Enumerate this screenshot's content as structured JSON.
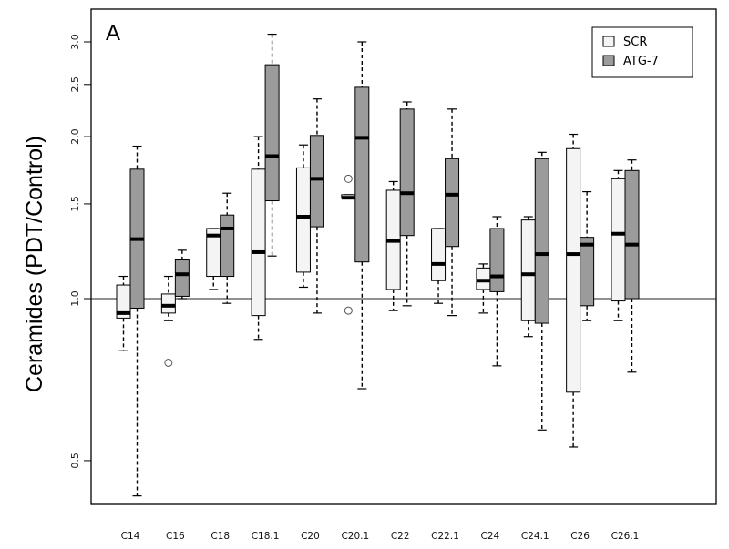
{
  "chart_data": {
    "type": "boxplot",
    "panel_label": "A",
    "ylabel": "Ceramides (PDT/Control)",
    "xlabel": "",
    "y_scale": "log",
    "ylim": [
      0.42,
      3.3
    ],
    "yticks": [
      0.5,
      1.0,
      1.5,
      2.0,
      2.5,
      3.0
    ],
    "ytick_labels": [
      "0.5",
      "1.0",
      "1.5",
      "2.0",
      "2.5",
      "3.0"
    ],
    "reference_line": 1.0,
    "legend_position": "top-right",
    "categories": [
      "C14",
      "C16",
      "C18",
      "C18.1",
      "C20",
      "C20.1",
      "C22",
      "C22.1",
      "C24",
      "C24.1",
      "C26",
      "C26.1"
    ],
    "series": [
      {
        "name": "SCR",
        "color": "#f4f4f4",
        "boxes": [
          {
            "whisker_low": 0.8,
            "q1": 0.92,
            "median": 0.94,
            "q3": 1.06,
            "whisker_high": 1.1,
            "outliers": []
          },
          {
            "whisker_low": 0.91,
            "q1": 0.94,
            "median": 0.97,
            "q3": 1.02,
            "whisker_high": 1.1,
            "outliers": [
              0.76
            ]
          },
          {
            "whisker_low": 1.04,
            "q1": 1.1,
            "median": 1.31,
            "q3": 1.35,
            "whisker_high": 1.35,
            "outliers": []
          },
          {
            "whisker_low": 0.84,
            "q1": 0.93,
            "median": 1.22,
            "q3": 1.74,
            "whisker_high": 2.0,
            "outliers": []
          },
          {
            "whisker_low": 1.05,
            "q1": 1.12,
            "median": 1.42,
            "q3": 1.75,
            "whisker_high": 1.93,
            "outliers": []
          },
          {
            "whisker_low": 1.54,
            "q1": 1.54,
            "median": 1.54,
            "q3": 1.56,
            "whisker_high": 1.56,
            "outliers": [
              1.67,
              0.95
            ]
          },
          {
            "whisker_low": 0.95,
            "q1": 1.04,
            "median": 1.28,
            "q3": 1.59,
            "whisker_high": 1.65,
            "outliers": []
          },
          {
            "whisker_low": 0.98,
            "q1": 1.08,
            "median": 1.16,
            "q3": 1.35,
            "whisker_high": 1.35,
            "outliers": []
          },
          {
            "whisker_low": 0.94,
            "q1": 1.04,
            "median": 1.08,
            "q3": 1.14,
            "whisker_high": 1.16,
            "outliers": []
          },
          {
            "whisker_low": 0.85,
            "q1": 0.91,
            "median": 1.11,
            "q3": 1.4,
            "whisker_high": 1.42,
            "outliers": []
          },
          {
            "whisker_low": 0.53,
            "q1": 0.67,
            "median": 1.21,
            "q3": 1.9,
            "whisker_high": 2.02,
            "outliers": []
          },
          {
            "whisker_low": 0.91,
            "q1": 0.99,
            "median": 1.32,
            "q3": 1.67,
            "whisker_high": 1.73,
            "outliers": []
          }
        ]
      },
      {
        "name": "ATG-7",
        "color": "#9b9b9b",
        "boxes": [
          {
            "whisker_low": 0.43,
            "q1": 0.96,
            "median": 1.29,
            "q3": 1.74,
            "whisker_high": 1.92,
            "outliers": []
          },
          {
            "whisker_low": 1.0,
            "q1": 1.01,
            "median": 1.11,
            "q3": 1.18,
            "whisker_high": 1.23,
            "outliers": []
          },
          {
            "whisker_low": 0.98,
            "q1": 1.1,
            "median": 1.35,
            "q3": 1.43,
            "whisker_high": 1.57,
            "outliers": []
          },
          {
            "whisker_low": 1.2,
            "q1": 1.52,
            "median": 1.84,
            "q3": 2.72,
            "whisker_high": 3.1,
            "outliers": []
          },
          {
            "whisker_low": 0.94,
            "q1": 1.36,
            "median": 1.67,
            "q3": 2.01,
            "whisker_high": 2.35,
            "outliers": []
          },
          {
            "whisker_low": 0.68,
            "q1": 1.17,
            "median": 1.99,
            "q3": 2.47,
            "whisker_high": 3.0,
            "outliers": []
          },
          {
            "whisker_low": 0.97,
            "q1": 1.31,
            "median": 1.57,
            "q3": 2.25,
            "whisker_high": 2.32,
            "outliers": []
          },
          {
            "whisker_low": 0.93,
            "q1": 1.25,
            "median": 1.56,
            "q3": 1.82,
            "whisker_high": 2.25,
            "outliers": []
          },
          {
            "whisker_low": 0.75,
            "q1": 1.03,
            "median": 1.1,
            "q3": 1.35,
            "whisker_high": 1.42,
            "outliers": []
          },
          {
            "whisker_low": 0.57,
            "q1": 0.9,
            "median": 1.21,
            "q3": 1.82,
            "whisker_high": 1.87,
            "outliers": []
          },
          {
            "whisker_low": 0.91,
            "q1": 0.97,
            "median": 1.26,
            "q3": 1.3,
            "whisker_high": 1.58,
            "outliers": []
          },
          {
            "whisker_low": 0.73,
            "q1": 1.0,
            "median": 1.26,
            "q3": 1.73,
            "whisker_high": 1.81,
            "outliers": []
          }
        ]
      }
    ]
  }
}
